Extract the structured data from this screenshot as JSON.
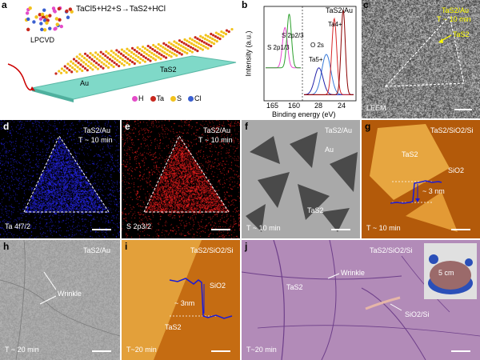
{
  "panels": {
    "a": {
      "letter": "a",
      "equation": "TaCl5+H2+S→TaS2+HCl",
      "lpcvd": "LPCVD",
      "au": "Au",
      "tas2": "TaS2",
      "legend": [
        {
          "label": "H",
          "color": "#e44cc8"
        },
        {
          "label": "Ta",
          "color": "#c8281e"
        },
        {
          "label": "S",
          "color": "#f2c21c"
        },
        {
          "label": "Cl",
          "color": "#3a5fd0"
        }
      ]
    },
    "b": {
      "letter": "b",
      "title": "TaS2/Au",
      "xlabel": "Binding energy (eV)",
      "ylabel": "Intensity (a.u.)",
      "ticks_left": [
        "165",
        "160"
      ],
      "ticks_right": [
        "28",
        "24"
      ],
      "peaks": [
        "S 2p1/3",
        "S 2p2/3",
        "O 2s",
        "Ta4+",
        "Ta5+"
      ]
    },
    "c": {
      "letter": "c",
      "line1": "TaS2/Au",
      "line2": "T ~ 10 min",
      "arrow": "TaS2",
      "mode": "LEEM"
    },
    "d": {
      "letter": "d",
      "line1": "TaS2/Au",
      "line2": "T ~ 10 min",
      "corner": "Ta 4f7/2"
    },
    "e": {
      "letter": "e",
      "line1": "TaS2/Au",
      "line2": "T ~ 10 min",
      "corner": "S 2p3/2"
    },
    "f": {
      "letter": "f",
      "line1": "TaS2/Au",
      "au": "Au",
      "tas2": "TaS2",
      "time": "T ~ 10 min"
    },
    "g": {
      "letter": "g",
      "line1": "TaS2/SiO2/Si",
      "tas2": "TaS2",
      "sio2": "SiO2",
      "height": "~ 3 nm",
      "time": "T ~ 10 min"
    },
    "h": {
      "letter": "h",
      "line1": "TaS2/Au",
      "wrinkle": "Wrinkle",
      "time": "T ~ 20 min"
    },
    "i": {
      "letter": "i",
      "line1": "TaS2/SiO2/Si",
      "sio2": "SiO2",
      "height": "~ 3nm",
      "tas2": "TaS2",
      "time": "T~20 min"
    },
    "j": {
      "letter": "j",
      "line1": "TaS2/SiO2/Si",
      "wrinkle": "Wrinkle",
      "tas2": "TaS2",
      "sio2si": "SiO2/Si",
      "inset": "5 cm",
      "time": "T~20 min"
    }
  },
  "chart_data": {
    "type": "line",
    "title": "TaS2/Au",
    "xlabel": "Binding energy (eV)",
    "ylabel": "Intensity (a.u.)",
    "xlim_left": [
      167,
      157
    ],
    "xlim_right": [
      31,
      21
    ],
    "series": [
      {
        "name": "S 2p1/3",
        "center": 161.5,
        "height": 0.45,
        "width": 1.0,
        "color": "#e84bd0"
      },
      {
        "name": "S 2p2/3",
        "center": 160.3,
        "height": 0.6,
        "width": 0.9,
        "color": "#2ca02c"
      },
      {
        "name": "O 2s",
        "center": 26.5,
        "height": 0.45,
        "width": 1.3,
        "color": "#3a7ad8"
      },
      {
        "name": "Ta5+",
        "center": 28.0,
        "height": 0.3,
        "width": 1.2,
        "color": "#2222aa"
      },
      {
        "name": "Ta4+",
        "center": 24.9,
        "height": 0.85,
        "width": 0.7,
        "color": "#d62728"
      },
      {
        "name": "Ta4+ (2)",
        "center": 23.1,
        "height": 0.95,
        "width": 0.6,
        "color": "#8b0000"
      }
    ]
  }
}
